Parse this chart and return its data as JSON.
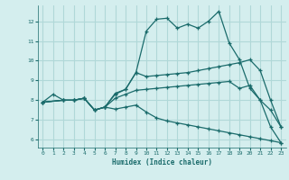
{
  "xlabel": "Humidex (Indice chaleur)",
  "bg_color": "#d4eeee",
  "line_color": "#1a6b6b",
  "grid_color": "#b0d8d8",
  "xlim": [
    -0.5,
    23.5
  ],
  "ylim": [
    5.6,
    12.8
  ],
  "xticks": [
    0,
    1,
    2,
    3,
    4,
    5,
    6,
    7,
    8,
    9,
    10,
    11,
    12,
    13,
    14,
    15,
    16,
    17,
    18,
    19,
    20,
    21,
    22,
    23
  ],
  "yticks": [
    6,
    7,
    8,
    9,
    10,
    11,
    12
  ],
  "line1_x": [
    0,
    1,
    2,
    3,
    4,
    5,
    6,
    7,
    8,
    9,
    10,
    11,
    12,
    13,
    14,
    15,
    16,
    17,
    18,
    19,
    20,
    21,
    22,
    23
  ],
  "line1_y": [
    7.9,
    8.3,
    8.0,
    8.0,
    8.1,
    7.5,
    7.65,
    8.3,
    8.55,
    9.4,
    11.5,
    12.1,
    12.15,
    11.65,
    11.85,
    11.65,
    12.0,
    12.5,
    10.9,
    10.05,
    8.6,
    8.0,
    6.65,
    5.85
  ],
  "line2_x": [
    0,
    2,
    3,
    4,
    5,
    6,
    7,
    8,
    9,
    10,
    11,
    12,
    13,
    14,
    15,
    16,
    17,
    18,
    19,
    20,
    21,
    22,
    23
  ],
  "line2_y": [
    7.9,
    8.0,
    8.0,
    8.1,
    7.5,
    7.65,
    8.35,
    8.55,
    9.4,
    9.2,
    9.25,
    9.3,
    9.35,
    9.4,
    9.5,
    9.6,
    9.7,
    9.8,
    9.9,
    10.05,
    9.5,
    8.0,
    6.65
  ],
  "line3_x": [
    0,
    2,
    3,
    4,
    5,
    6,
    7,
    8,
    9,
    10,
    11,
    12,
    13,
    14,
    15,
    16,
    17,
    18,
    19,
    20,
    21,
    22,
    23
  ],
  "line3_y": [
    7.9,
    8.0,
    8.0,
    8.1,
    7.5,
    7.65,
    8.1,
    8.3,
    8.5,
    8.55,
    8.6,
    8.65,
    8.7,
    8.75,
    8.8,
    8.85,
    8.9,
    8.95,
    8.6,
    8.75,
    8.0,
    7.5,
    6.65
  ],
  "line4_x": [
    0,
    2,
    3,
    4,
    5,
    6,
    7,
    8,
    9,
    10,
    11,
    12,
    13,
    14,
    15,
    16,
    17,
    18,
    19,
    20,
    21,
    22,
    23
  ],
  "line4_y": [
    7.9,
    8.0,
    8.0,
    8.1,
    7.5,
    7.65,
    7.55,
    7.65,
    7.75,
    7.4,
    7.1,
    6.95,
    6.85,
    6.75,
    6.65,
    6.55,
    6.45,
    6.35,
    6.25,
    6.15,
    6.05,
    5.95,
    5.85
  ]
}
